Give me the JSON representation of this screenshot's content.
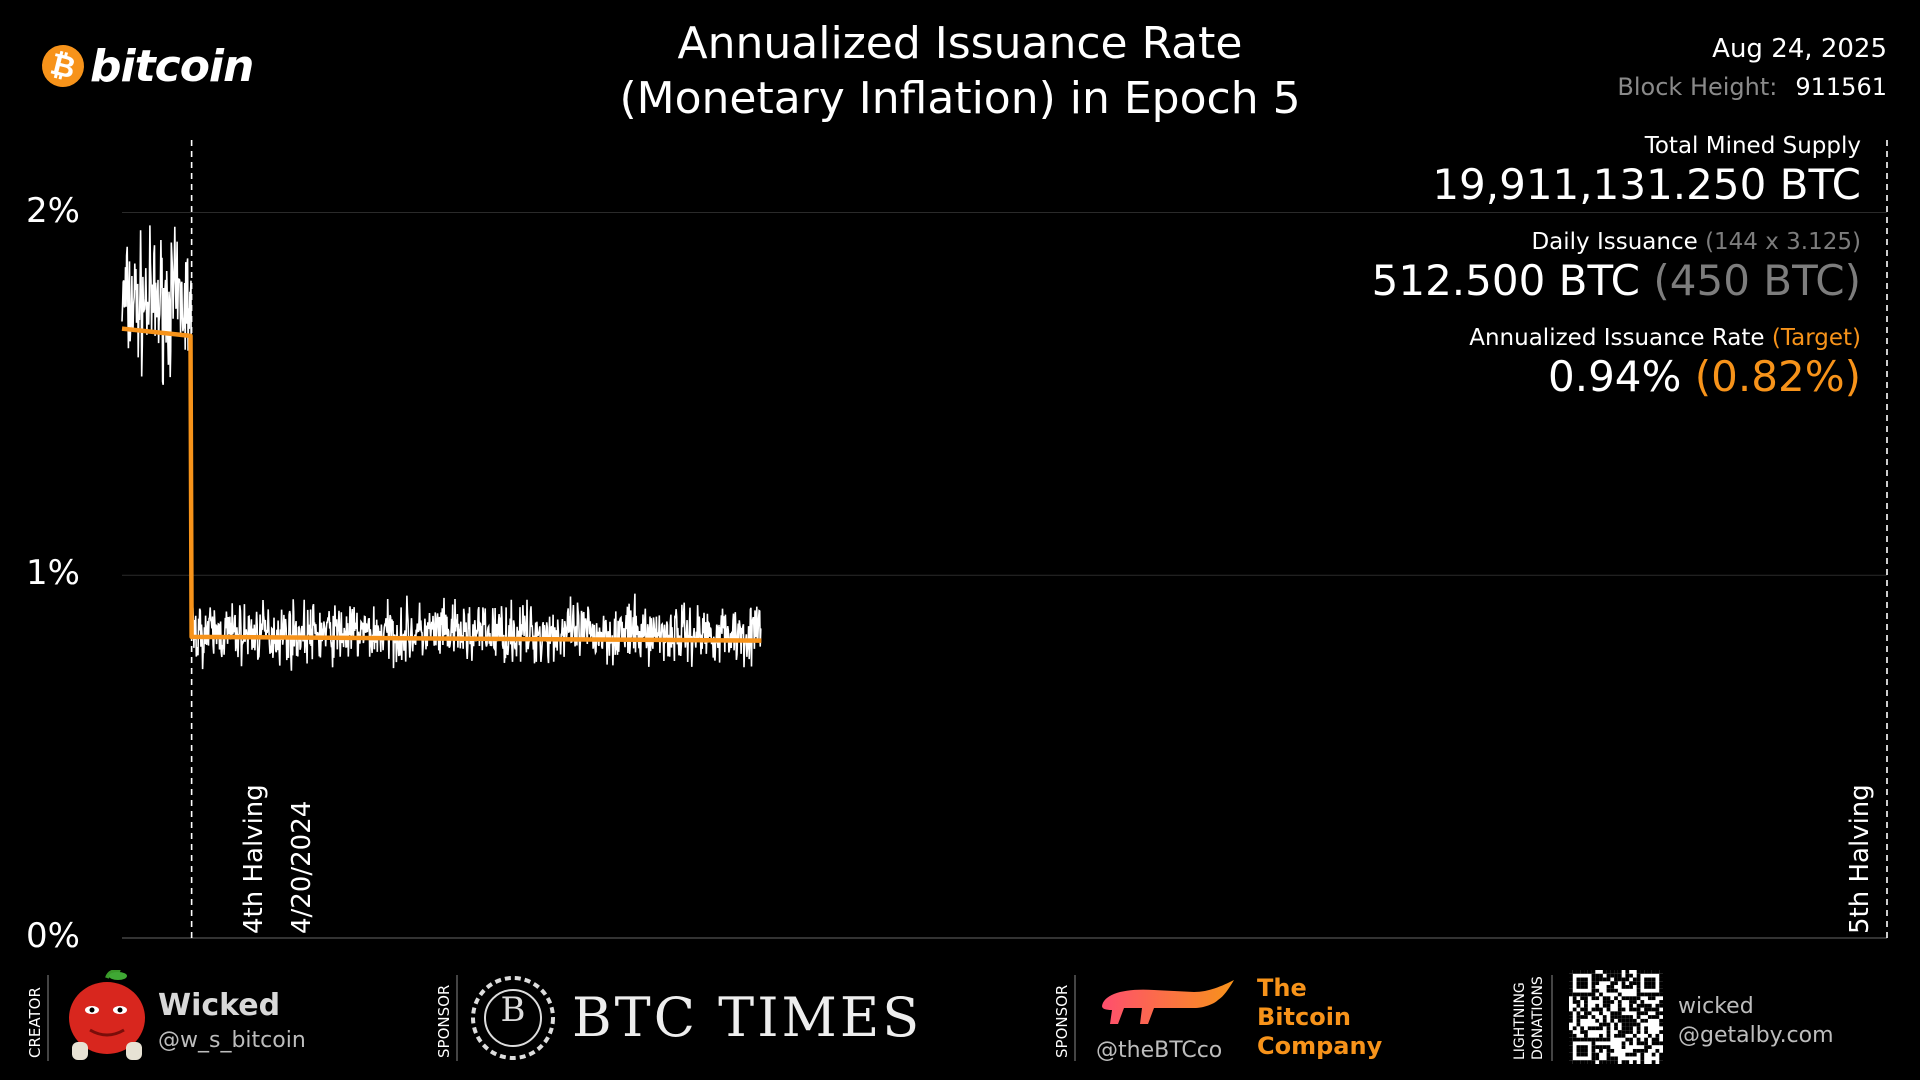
{
  "brand": {
    "coin_symbol": "₿",
    "wordmark": "bitcoin",
    "accent_color": "#f7931a"
  },
  "header": {
    "title_line1": "Annualized Issuance Rate",
    "title_line2": "(Monetary Inflation) in Epoch 5",
    "date": "Aug 24, 2025",
    "block_height_label": "Block Height:",
    "block_height_value": "911561"
  },
  "stats": {
    "total_supply_label": "Total Mined Supply",
    "total_supply_value": "19,911,131.250 BTC",
    "daily_issuance_label": "Daily Issuance",
    "daily_issuance_formula": "(144 x 3.125)",
    "daily_issuance_value": "512.500 BTC",
    "daily_issuance_target": "(450 BTC)",
    "rate_label": "Annualized Issuance Rate",
    "rate_target_label": "(Target)",
    "rate_value": "0.94%",
    "rate_target_value": "(0.82%)"
  },
  "chart_data": {
    "type": "line",
    "x_range": [
      "2024-02-20",
      "2028-04-20"
    ],
    "ylim": [
      0,
      2.2
    ],
    "y_ticks": [
      "0%",
      "1%",
      "2%"
    ],
    "y_tick_values": [
      0,
      1,
      2
    ],
    "grid": true,
    "series": [
      {
        "color": "#ffffff",
        "x_start": "2024-02-20",
        "x_end": "2025-08-24",
        "pre_halving_mean": 1.75,
        "post_halving_mean": 0.84
      },
      {
        "color": "#f7931a",
        "x_start": "2024-02-20",
        "x_end": "2025-08-24",
        "values": [
          {
            "x": "2024-02-20",
            "y": 1.68
          },
          {
            "x": "2024-04-19",
            "y": 1.66
          },
          {
            "x": "2024-04-20",
            "y": 0.83
          },
          {
            "x": "2025-08-24",
            "y": 0.82
          }
        ]
      }
    ],
    "annotations": [
      {
        "label": "4th Halving",
        "date_label": "4/20/2024",
        "x": "2024-04-20"
      },
      {
        "label": "5th Halving",
        "x": "2028-04-20"
      }
    ]
  },
  "footer": {
    "creator_label": "CREATOR",
    "creator_name": "Wicked",
    "creator_handle": "@w_s_bitcoin",
    "sponsor_label": "SPONSOR",
    "sponsor1_name": "BTC TIMES",
    "sponsor1_seal": "B",
    "sponsor2_handle": "@theBTCco",
    "sponsor2_line1": "The",
    "sponsor2_line2": "Bitcoin",
    "sponsor2_line3": "Company",
    "donations_label1": "LIGHTNING",
    "donations_label2": "DONATIONS",
    "donate_name": "wicked",
    "donate_address": "@getalby.com"
  }
}
